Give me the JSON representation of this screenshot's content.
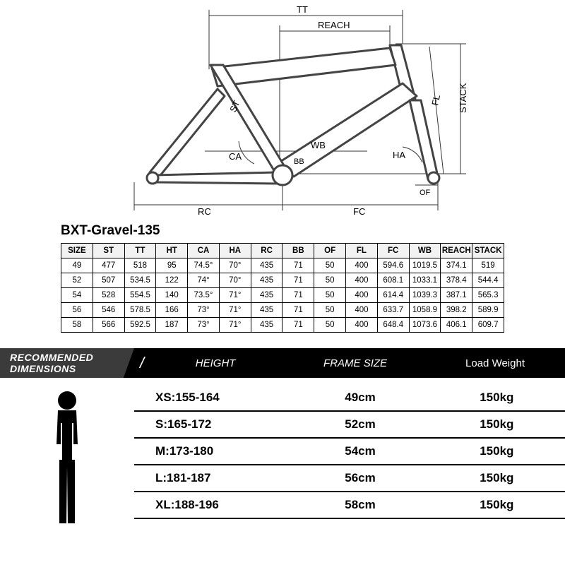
{
  "productTitle": "BXT-Gravel-135",
  "diagramLabels": {
    "TT": "TT",
    "REACH": "REACH",
    "STACK": "STACK",
    "FL": "FL",
    "ST": "ST",
    "CA": "CA",
    "HA": "HA",
    "WB": "WB",
    "BB": "BB",
    "OF": "OF",
    "RC": "RC",
    "FC": "FC"
  },
  "specTable": {
    "columns": [
      "SIZE",
      "ST",
      "TT",
      "HT",
      "CA",
      "HA",
      "RC",
      "BB",
      "OF",
      "FL",
      "FC",
      "WB",
      "REACH",
      "STACK"
    ],
    "rows": [
      [
        "49",
        "477",
        "518",
        "95",
        "74.5°",
        "70°",
        "435",
        "71",
        "50",
        "400",
        "594.6",
        "1019.5",
        "374.1",
        "519"
      ],
      [
        "52",
        "507",
        "534.5",
        "122",
        "74°",
        "70°",
        "435",
        "71",
        "50",
        "400",
        "608.1",
        "1033.1",
        "378.4",
        "544.4"
      ],
      [
        "54",
        "528",
        "554.5",
        "140",
        "73.5°",
        "71°",
        "435",
        "71",
        "50",
        "400",
        "614.4",
        "1039.3",
        "387.1",
        "565.3"
      ],
      [
        "56",
        "546",
        "578.5",
        "166",
        "73°",
        "71°",
        "435",
        "71",
        "50",
        "400",
        "633.7",
        "1058.9",
        "398.2",
        "589.9"
      ],
      [
        "58",
        "566",
        "592.5",
        "187",
        "73°",
        "71°",
        "435",
        "71",
        "50",
        "400",
        "648.4",
        "1073.6",
        "406.1",
        "609.7"
      ]
    ],
    "headerBg": "#f2f2f2",
    "borderColor": "#000000",
    "fontSize": 11.5
  },
  "recHeader": {
    "title1": "RECOMMENDED",
    "title2": "DIMENSIONS",
    "col1": "HEIGHT",
    "col2": "FRAME SIZE",
    "col3": "Load Weight",
    "bg": "#000000",
    "tabBg": "#3b3b3b",
    "fg": "#ffffff"
  },
  "recRows": [
    {
      "height": "XS:155-164",
      "frame": "49cm",
      "load": "150kg"
    },
    {
      "height": "S:165-172",
      "frame": "52cm",
      "load": "150kg"
    },
    {
      "height": "M:173-180",
      "frame": "54cm",
      "load": "150kg"
    },
    {
      "height": "L:181-187",
      "frame": "56cm",
      "load": "150kg"
    },
    {
      "height": "XL:188-196",
      "frame": "58cm",
      "load": "150kg"
    }
  ],
  "silhouetteColor": "#000000",
  "colors": {
    "pageBg": "#ffffff",
    "text": "#000000",
    "diagramStroke": "#5b5b5b",
    "diagramStrokeThin": "#888888"
  }
}
